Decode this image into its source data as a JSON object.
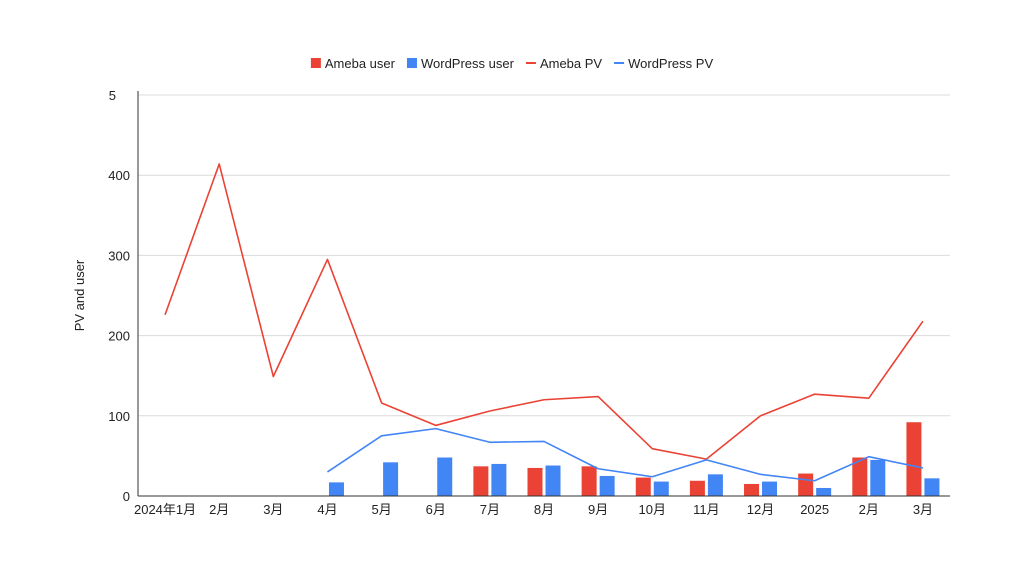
{
  "chart_data": {
    "type": "bar",
    "title": "",
    "xlabel": "",
    "ylabel": "PV and user",
    "ylim": [
      0,
      500
    ],
    "y_ticks": [
      0,
      100,
      200,
      300,
      400
    ],
    "y_top_label": "5",
    "grid": true,
    "legend_position": "top",
    "categories": [
      "2024年1月",
      "2月",
      "3月",
      "4月",
      "5月",
      "6月",
      "7月",
      "8月",
      "9月",
      "10月",
      "11月",
      "12月",
      "2025",
      "2月",
      "3月"
    ],
    "bar_series": [
      {
        "name": "Ameba user",
        "color": "#ea4335",
        "values": [
          null,
          null,
          null,
          null,
          null,
          null,
          37,
          35,
          37,
          23,
          19,
          15,
          28,
          48,
          92
        ]
      },
      {
        "name": "WordPress user",
        "color": "#4285f4",
        "values": [
          null,
          null,
          null,
          17,
          42,
          48,
          40,
          38,
          25,
          18,
          27,
          18,
          10,
          45,
          22
        ]
      }
    ],
    "line_series": [
      {
        "name": "Ameba PV",
        "color": "#ea4335",
        "values": [
          226,
          414,
          149,
          295,
          116,
          88,
          106,
          120,
          124,
          59,
          46,
          100,
          127,
          122,
          218
        ]
      },
      {
        "name": "WordPress PV",
        "color": "#4285f4",
        "values": [
          null,
          null,
          null,
          30,
          75,
          84,
          67,
          68,
          34,
          24,
          45,
          27,
          19,
          49,
          35
        ]
      }
    ]
  }
}
